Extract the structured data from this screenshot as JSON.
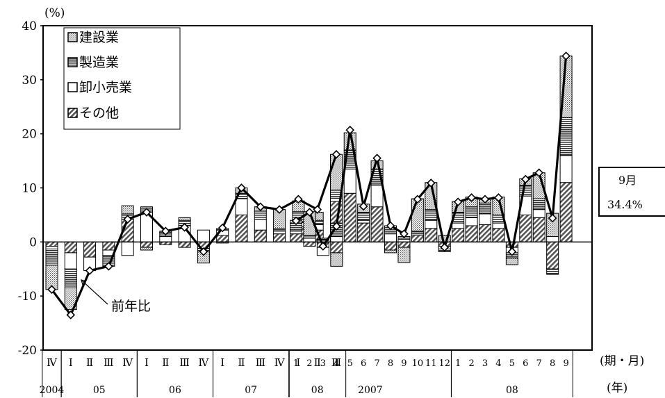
{
  "chart_data": {
    "type": "bar",
    "title": "",
    "ylabel": "(%)",
    "ylim": [
      -20,
      40
    ],
    "yticks": [
      -20,
      -10,
      0,
      10,
      20,
      30,
      40
    ],
    "x_unit_label": "(期・月)",
    "year_unit_label": "(年)",
    "quarterly": {
      "categories": [
        "Ⅳ",
        "Ⅰ",
        "Ⅱ",
        "Ⅲ",
        "Ⅳ",
        "Ⅰ",
        "Ⅱ",
        "Ⅲ",
        "Ⅳ",
        "Ⅰ",
        "Ⅱ",
        "Ⅲ",
        "Ⅳ",
        "Ⅰ",
        "Ⅱ",
        "Ⅲ"
      ],
      "years": [
        {
          "label": "2004",
          "from": 0,
          "to": 0
        },
        {
          "label": "05",
          "from": 1,
          "to": 4
        },
        {
          "label": "06",
          "from": 5,
          "to": 8
        },
        {
          "label": "07",
          "from": 9,
          "to": 12
        },
        {
          "label": "08",
          "from": 13,
          "to": 15
        }
      ],
      "series": [
        {
          "name": "その他",
          "values": [
            -0.8,
            -2.0,
            -2.8,
            -1.5,
            4.2,
            -1.0,
            -0.5,
            -1.0,
            -1.2,
            1.2,
            5.0,
            2.2,
            1.5,
            2.8,
            2.2,
            7.5
          ]
        },
        {
          "name": "卸小売業",
          "values": [
            -0.5,
            -3.0,
            -2.5,
            -1.0,
            -2.5,
            5.5,
            1.0,
            3.0,
            2.2,
            1.0,
            3.0,
            2.0,
            0.5,
            0.8,
            1.0,
            0.6
          ]
        },
        {
          "name": "製造業",
          "values": [
            -3.0,
            -3.5,
            0.0,
            -2.0,
            1.0,
            1.0,
            0.8,
            1.0,
            -0.5,
            0.3,
            1.0,
            1.5,
            0.5,
            2.0,
            0.8,
            1.5
          ]
        },
        {
          "name": "建設業",
          "values": [
            -4.5,
            -4.0,
            0.0,
            0.0,
            1.5,
            -0.5,
            0.2,
            0.5,
            -2.2,
            -0.2,
            1.0,
            0.8,
            3.5,
            2.0,
            1.5,
            6.6
          ]
        }
      ],
      "line": [
        -8.8,
        -13.5,
        -5.3,
        -4.5,
        4.2,
        5.5,
        2.0,
        2.7,
        -1.8,
        2.6,
        10.0,
        6.5,
        6.0,
        7.9,
        6.0,
        16.2
      ]
    },
    "monthly": {
      "categories": [
        "1",
        "2",
        "3",
        "4",
        "5",
        "6",
        "7",
        "8",
        "9",
        "10",
        "11",
        "12",
        "1",
        "2",
        "3",
        "4",
        "5",
        "6",
        "7",
        "8",
        "9"
      ],
      "years": [
        {
          "label": "2007",
          "from": 0,
          "to": 11
        },
        {
          "label": "08",
          "from": 12,
          "to": 20
        }
      ],
      "series": [
        {
          "name": "その他",
          "values": [
            1.5,
            -0.8,
            -1.0,
            -2.0,
            9.0,
            3.5,
            6.5,
            -1.5,
            -1.0,
            1.2,
            2.5,
            -0.8,
            2.5,
            3.0,
            3.2,
            2.5,
            -1.0,
            5.0,
            4.5,
            -5.0,
            11.0
          ]
        },
        {
          "name": "卸小売業",
          "values": [
            0.5,
            0.7,
            -1.5,
            1.0,
            4.5,
            0.5,
            4.0,
            1.5,
            0.5,
            0.3,
            1.5,
            -0.5,
            1.0,
            1.5,
            2.0,
            1.0,
            -1.0,
            3.5,
            1.5,
            1.0,
            5.0
          ]
        },
        {
          "name": "製造業",
          "values": [
            1.5,
            0.5,
            0.5,
            2.5,
            3.5,
            1.5,
            3.0,
            1.5,
            0.5,
            0.5,
            2.0,
            -0.5,
            2.0,
            2.0,
            2.0,
            1.5,
            -1.0,
            2.0,
            2.0,
            -1.0,
            7.0
          ]
        },
        {
          "name": "建設業",
          "values": [
            0.5,
            4.4,
            0.2,
            -2.5,
            3.2,
            1.5,
            1.5,
            -0.5,
            -2.8,
            6.0,
            5.0,
            1.2,
            2.0,
            1.8,
            0.8,
            3.3,
            -1.2,
            1.2,
            4.8,
            4.3,
            11.4
          ]
        }
      ],
      "line": [
        3.9,
        5.5,
        -0.8,
        2.9,
        20.7,
        6.6,
        15.5,
        3.0,
        1.5,
        7.9,
        10.9,
        -1.0,
        7.4,
        8.2,
        7.9,
        8.2,
        -1.8,
        11.6,
        12.8,
        4.4,
        34.4
      ]
    },
    "legend": {
      "position": "top-left",
      "items": [
        {
          "label": "建設業",
          "pattern": "dots"
        },
        {
          "label": "製造業",
          "pattern": "hlines"
        },
        {
          "label": "卸小売業",
          "pattern": "blank"
        },
        {
          "label": "その他",
          "pattern": "diag"
        }
      ]
    },
    "annotations": {
      "line_label": "前年比",
      "callout_month": "9月",
      "callout_value": "34.4%"
    }
  }
}
